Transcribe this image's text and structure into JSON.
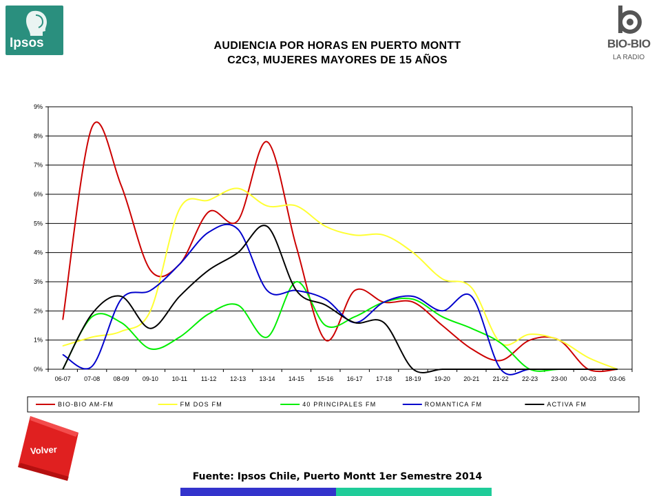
{
  "header": {
    "title_line1": "AUDIENCIA POR HORAS EN PUERTO MONTT",
    "title_line2": "C2C3, MUJERES MAYORES DE 15 AÑOS"
  },
  "logos": {
    "left": "Ipsos",
    "right_main": "BIO-BIO",
    "right_sub": "LA RADIO"
  },
  "nav": {
    "back_label": "Volver"
  },
  "footer": {
    "source": "Fuente: Ipsos Chile, Puerto Montt 1er Semestre 2014"
  },
  "colors": {
    "bar_blue": "#3333cc",
    "bar_green": "#1fcc99",
    "back_button": "#e02020"
  },
  "chart_data": {
    "type": "line",
    "title": "",
    "xlabel": "",
    "ylabel": "",
    "ylim": [
      0,
      9
    ],
    "y_ticks": [
      "0%",
      "1%",
      "2%",
      "3%",
      "4%",
      "5%",
      "6%",
      "7%",
      "8%",
      "9%"
    ],
    "grid": true,
    "legend_position": "bottom",
    "categories": [
      "06-07",
      "07-08",
      "08-09",
      "09-10",
      "10-11",
      "11-12",
      "12-13",
      "13-14",
      "14-15",
      "15-16",
      "16-17",
      "17-18",
      "18-19",
      "19-20",
      "20-21",
      "21-22",
      "22-23",
      "23-00",
      "00-03",
      "03-06"
    ],
    "series": [
      {
        "name": "BIO-BIO AM-FM",
        "color": "#cc0000",
        "values": [
          1.7,
          8.3,
          6.3,
          3.4,
          3.6,
          5.4,
          5.1,
          7.8,
          4.2,
          1.0,
          2.7,
          2.3,
          2.3,
          1.5,
          0.7,
          0.3,
          1.0,
          1.0,
          0.0,
          0.0
        ]
      },
      {
        "name": "FM DOS FM",
        "color": "#ffff33",
        "values": [
          0.8,
          1.1,
          1.3,
          2.0,
          5.5,
          5.8,
          6.2,
          5.6,
          5.6,
          4.9,
          4.6,
          4.6,
          4.0,
          3.1,
          2.8,
          0.9,
          1.2,
          1.0,
          0.4,
          0.0
        ]
      },
      {
        "name": "40 PRINCIPALES FM",
        "color": "#00ee00",
        "values": [
          0.0,
          1.8,
          1.6,
          0.7,
          1.1,
          1.9,
          2.2,
          1.1,
          3.0,
          1.5,
          1.8,
          2.3,
          2.4,
          1.8,
          1.4,
          0.9,
          0.0,
          0.0,
          0.0,
          0.0
        ]
      },
      {
        "name": "ROMANTICA FM",
        "color": "#0000cc",
        "values": [
          0.5,
          0.1,
          2.4,
          2.7,
          3.6,
          4.7,
          4.8,
          2.7,
          2.7,
          2.4,
          1.6,
          2.3,
          2.5,
          2.0,
          2.5,
          0.0,
          0.0,
          0.0,
          0.0,
          0.0
        ]
      },
      {
        "name": "ACTIVA FM",
        "color": "#000000",
        "values": [
          0.0,
          1.9,
          2.5,
          1.4,
          2.5,
          3.4,
          4.0,
          4.9,
          2.7,
          2.2,
          1.6,
          1.6,
          0.0,
          0.0,
          0.0,
          0.0,
          0.0,
          0.0,
          0.0,
          0.0
        ]
      }
    ]
  }
}
